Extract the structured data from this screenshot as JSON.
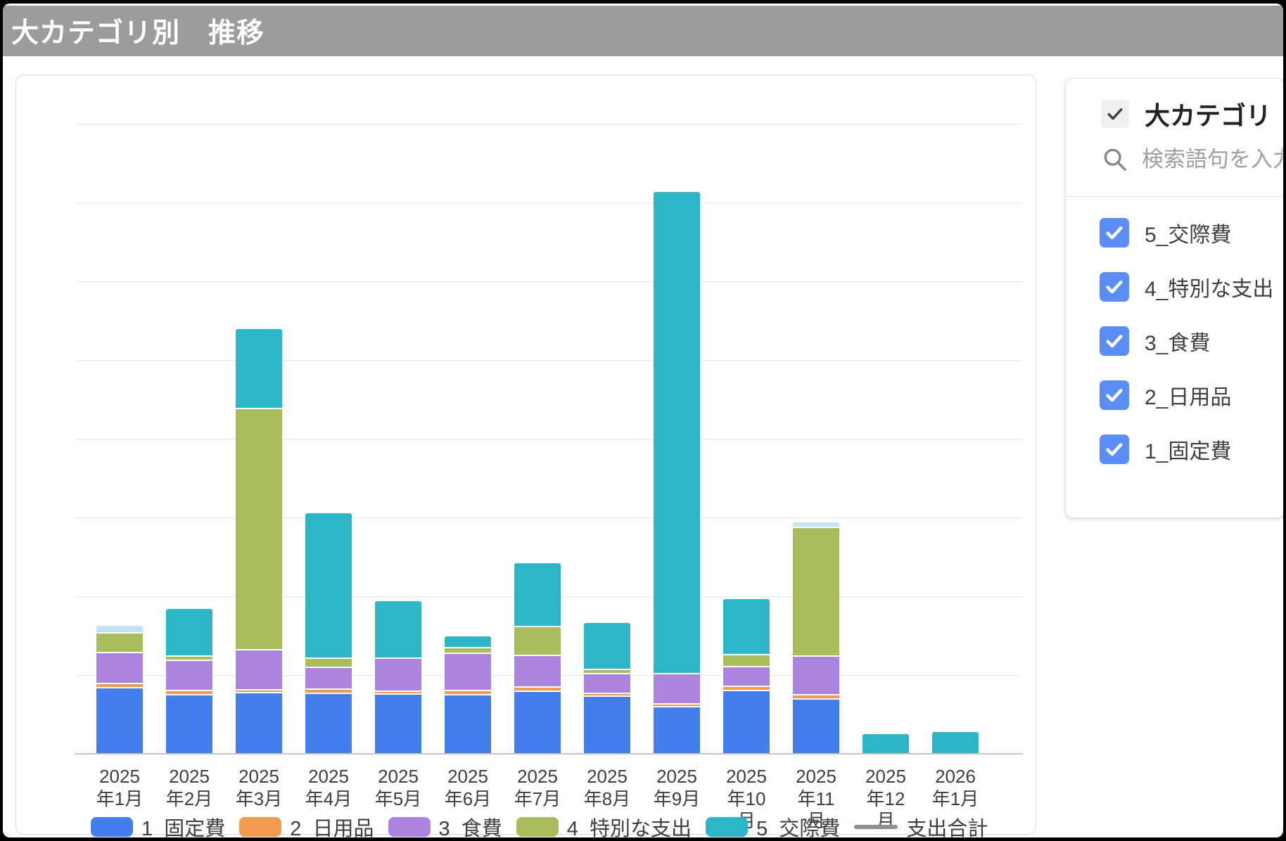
{
  "header": {
    "title": "大カテゴリ別　推移"
  },
  "filter_panel": {
    "title": "大カテゴリ",
    "header_checkbox_checked": true,
    "search_placeholder": "検索語句を入力",
    "checkbox_color": "#5c8df6",
    "items": [
      {
        "label": "5_交際費",
        "checked": true
      },
      {
        "label": "4_特別な支出",
        "checked": true
      },
      {
        "label": "3_食費",
        "checked": true
      },
      {
        "label": "2_日用品",
        "checked": true
      },
      {
        "label": "1_固定費",
        "checked": true
      }
    ]
  },
  "chart_data": {
    "type": "bar",
    "stacked": true,
    "title": "大カテゴリ別　推移",
    "categories": [
      "2025年1月",
      "2025年2月",
      "2025年3月",
      "2025年4月",
      "2025年5月",
      "2025年6月",
      "2025年7月",
      "2025年8月",
      "2025年9月",
      "2025年10月",
      "2025年11月",
      "2025年12月",
      "2026年1月"
    ],
    "x_tick_lines": [
      [
        "2025",
        "年1月"
      ],
      [
        "2025",
        "年2月"
      ],
      [
        "2025",
        "年3月"
      ],
      [
        "2025",
        "年4月"
      ],
      [
        "2025",
        "年5月"
      ],
      [
        "2025",
        "年6月"
      ],
      [
        "2025",
        "年7月"
      ],
      [
        "2025",
        "年8月"
      ],
      [
        "2025",
        "年9月"
      ],
      [
        "2025",
        "年10",
        "月"
      ],
      [
        "2025",
        "年11月"
      ],
      [
        "2025",
        "年12",
        "月"
      ],
      [
        "2026",
        "年1月"
      ]
    ],
    "series": [
      {
        "name": "1_固定費",
        "color": "#447EEC",
        "values": [
          0.84,
          0.75,
          0.78,
          0.77,
          0.76,
          0.75,
          0.79,
          0.73,
          0.6,
          0.8,
          0.7,
          0,
          0
        ]
      },
      {
        "name": "2_日用品",
        "color": "#F09B4D",
        "values": [
          0.05,
          0.05,
          0.04,
          0.05,
          0.04,
          0.05,
          0.05,
          0.04,
          0.04,
          0.05,
          0.05,
          0,
          0
        ]
      },
      {
        "name": "3_食費",
        "color": "#AB84E0",
        "values": [
          0.39,
          0.38,
          0.51,
          0.28,
          0.42,
          0.47,
          0.4,
          0.25,
          0.38,
          0.25,
          0.49,
          0,
          0
        ]
      },
      {
        "name": "4_特別な支出",
        "color": "#A9BD5C",
        "values": [
          0.25,
          0.05,
          3.06,
          0.12,
          0,
          0.07,
          0.37,
          0.05,
          0,
          0.15,
          1.63,
          0,
          0
        ]
      },
      {
        "name": "5_交際費",
        "color": "#2DB6C5",
        "values": [
          0.08,
          0.59,
          1.0,
          1.83,
          0.71,
          0.13,
          0.79,
          0.58,
          6.1,
          0.7,
          0.05,
          0.24,
          0.27
        ]
      }
    ],
    "light_caps": {
      "series": "5_交際費",
      "color": "#C3E4F0",
      "bars": {
        "0": 0.08,
        "10": 0.05
      }
    },
    "total_line_legend": {
      "name": "支出合計",
      "color": "#8F8F8F",
      "visible_in_plot": false
    },
    "y_axis": {
      "min": 0,
      "max": 8,
      "gridline_interval": 1,
      "labels_visible": false
    },
    "legend_position": "bottom",
    "xlabel": "",
    "ylabel": ""
  }
}
